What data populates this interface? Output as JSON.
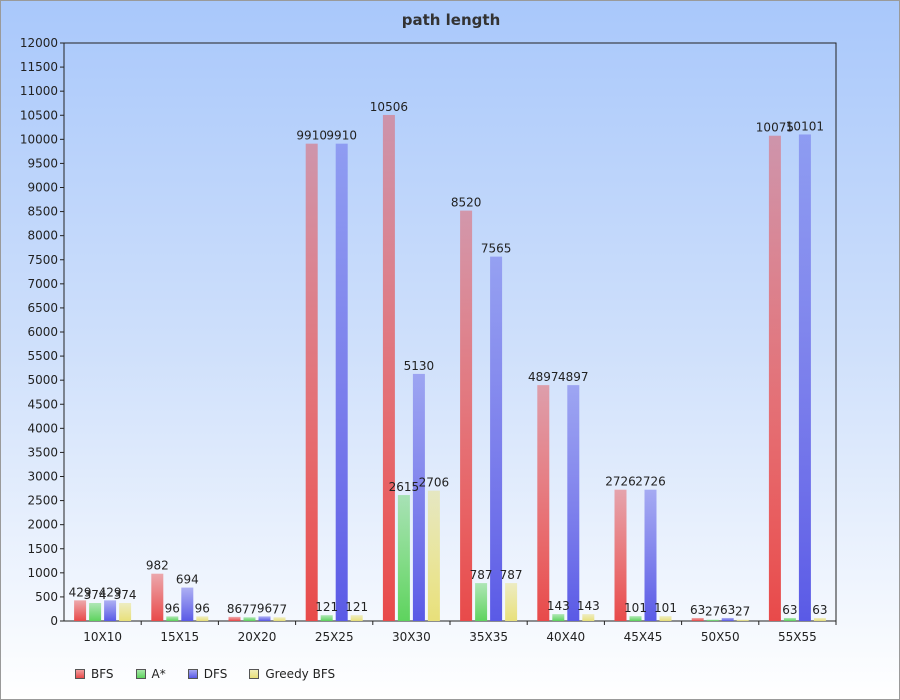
{
  "chart_data": {
    "type": "bar",
    "title": "path length",
    "xlabel": "",
    "ylabel": "",
    "ylim": [
      0,
      12000
    ],
    "ytick_step": 500,
    "grid": false,
    "legend_position": "bottom-left",
    "categories": [
      "10X10",
      "15X15",
      "20X20",
      "25X25",
      "30X30",
      "35X35",
      "40X40",
      "45X45",
      "50X50",
      "55X55"
    ],
    "series": [
      {
        "name": "BFS",
        "color": "#e84a4a",
        "values": [
          429,
          982,
          86,
          9910,
          10506,
          8520,
          4897,
          2726,
          63,
          10075
        ]
      },
      {
        "name": "A*",
        "color": "#5ed35e",
        "values": [
          374,
          96,
          77,
          121,
          2615,
          787,
          143,
          101,
          27,
          63
        ]
      },
      {
        "name": "DFS",
        "color": "#5a5ae6",
        "values": [
          429,
          694,
          96,
          9910,
          5130,
          7565,
          4897,
          2726,
          63,
          10101
        ]
      },
      {
        "name": "Greedy BFS",
        "color": "#e8e07a",
        "values": [
          374,
          96,
          77,
          121,
          2706,
          787,
          143,
          101,
          27,
          63
        ]
      }
    ]
  }
}
